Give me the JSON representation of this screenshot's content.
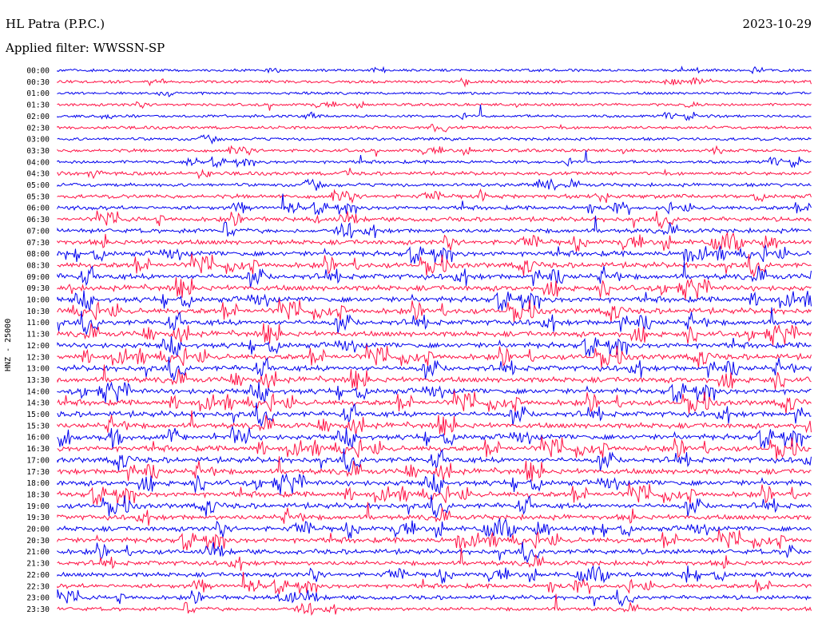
{
  "header": {
    "station": "HL Patra (P.P.C.)",
    "date": "2023-10-29",
    "filter": "Applied filter: WWSSN-SP"
  },
  "chart_data": {
    "type": "line",
    "title": "HL Patra (P.P.C.)",
    "subtitle": "Applied filter: WWSSN-SP",
    "ylabel": "HNZ - 25000",
    "row_labels": [
      "00:00",
      "00:30",
      "01:00",
      "01:30",
      "02:00",
      "02:30",
      "03:00",
      "03:30",
      "04:00",
      "04:30",
      "05:00",
      "05:30",
      "06:00",
      "06:30",
      "07:00",
      "07:30",
      "08:00",
      "08:30",
      "09:00",
      "09:30",
      "10:00",
      "10:30",
      "11:00",
      "11:30",
      "12:00",
      "12:30",
      "13:00",
      "13:30",
      "14:00",
      "14:30",
      "15:00",
      "15:30",
      "16:00",
      "16:30",
      "17:00",
      "17:30",
      "18:00",
      "18:30",
      "19:00",
      "19:30",
      "20:00",
      "20:30",
      "21:00",
      "21:30",
      "22:00",
      "22:30",
      "23:00",
      "23:30"
    ],
    "series_colors": [
      "#0000ee",
      "#ff1144"
    ],
    "row_activity": [
      0.25,
      0.3,
      0.25,
      0.3,
      0.3,
      0.35,
      0.35,
      0.4,
      0.4,
      0.5,
      0.5,
      0.6,
      0.6,
      0.7,
      0.75,
      0.85,
      0.9,
      0.95,
      1.0,
      1.0,
      1.0,
      1.0,
      1.0,
      1.0,
      1.0,
      1.0,
      1.0,
      1.0,
      1.0,
      1.0,
      1.0,
      1.0,
      1.0,
      1.0,
      1.0,
      1.0,
      1.0,
      0.95,
      0.95,
      0.9,
      0.9,
      0.9,
      0.85,
      0.8,
      0.75,
      0.7,
      0.65,
      0.55
    ],
    "grid": false,
    "legend": "none"
  }
}
